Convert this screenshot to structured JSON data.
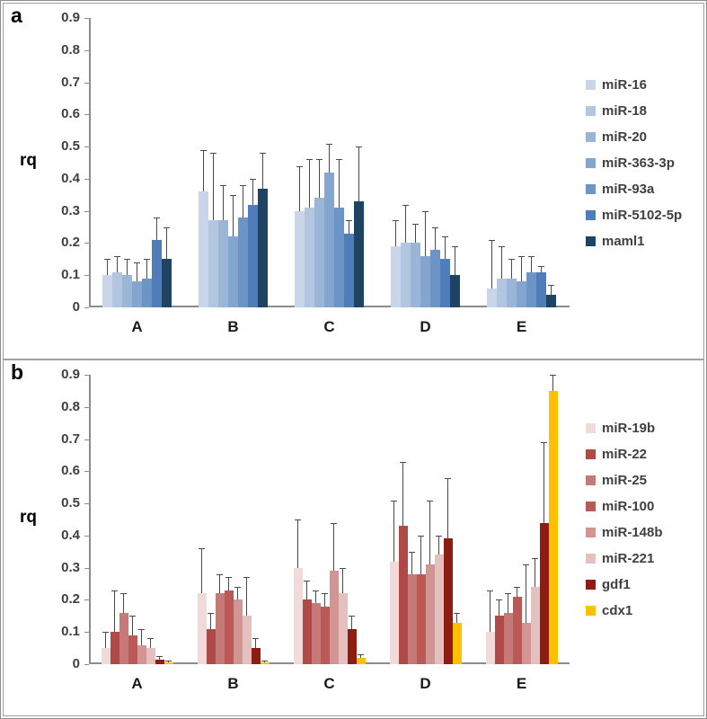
{
  "figure": {
    "panels": [
      "a",
      "b"
    ]
  },
  "chart_data": [
    {
      "type": "bar",
      "panel_label": "a",
      "title": "",
      "xlabel": "",
      "ylabel": "rq",
      "ylim": [
        0,
        0.9
      ],
      "yticks": [
        "0",
        "0.1",
        "0.2",
        "0.3",
        "0.4",
        "0.5",
        "0.6",
        "0.7",
        "0.8",
        "0.9"
      ],
      "grid": false,
      "legend_position": "right",
      "error_bars": true,
      "categories": [
        "A",
        "B",
        "C",
        "D",
        "E"
      ],
      "series": [
        {
          "name": "miR-16",
          "color": "#c9d6ea",
          "values": [
            0.1,
            0.36,
            0.3,
            0.19,
            0.06
          ],
          "error_top": [
            0.15,
            0.49,
            0.44,
            0.27,
            0.21
          ]
        },
        {
          "name": "miR-18",
          "color": "#b2c6e0",
          "values": [
            0.11,
            0.27,
            0.31,
            0.2,
            0.09
          ],
          "error_top": [
            0.16,
            0.48,
            0.46,
            0.32,
            0.19
          ]
        },
        {
          "name": "miR-20",
          "color": "#9bb5d7",
          "values": [
            0.1,
            0.27,
            0.34,
            0.2,
            0.09
          ],
          "error_top": [
            0.15,
            0.38,
            0.46,
            0.26,
            0.15
          ]
        },
        {
          "name": "miR-363-3p",
          "color": "#84a5cd",
          "values": [
            0.08,
            0.22,
            0.42,
            0.16,
            0.08
          ],
          "error_top": [
            0.14,
            0.35,
            0.51,
            0.3,
            0.16
          ]
        },
        {
          "name": "miR-93a",
          "color": "#6c94c4",
          "values": [
            0.09,
            0.28,
            0.31,
            0.18,
            0.11
          ],
          "error_top": [
            0.15,
            0.38,
            0.46,
            0.25,
            0.16
          ]
        },
        {
          "name": "miR-5102-5p",
          "color": "#4e7dba",
          "values": [
            0.21,
            0.32,
            0.23,
            0.15,
            0.11
          ],
          "error_top": [
            0.28,
            0.4,
            0.27,
            0.22,
            0.13
          ]
        },
        {
          "name": "maml1",
          "color": "#1f4363",
          "values": [
            0.15,
            0.37,
            0.33,
            0.1,
            0.04
          ],
          "error_top": [
            0.25,
            0.48,
            0.5,
            0.19,
            0.07
          ]
        }
      ]
    },
    {
      "type": "bar",
      "panel_label": "b",
      "title": "",
      "xlabel": "",
      "ylabel": "rq",
      "ylim": [
        0,
        0.9
      ],
      "yticks": [
        "0",
        "0.1",
        "0.2",
        "0.3",
        "0.4",
        "0.5",
        "0.6",
        "0.7",
        "0.8",
        "0.9"
      ],
      "grid": false,
      "legend_position": "right",
      "error_bars": true,
      "categories": [
        "A",
        "B",
        "C",
        "D",
        "E"
      ],
      "series": [
        {
          "name": "miR-19b",
          "color": "#f1dbda",
          "values": [
            0.05,
            0.22,
            0.3,
            0.32,
            0.1
          ],
          "error_top": [
            0.1,
            0.36,
            0.45,
            0.51,
            0.23
          ]
        },
        {
          "name": "miR-22",
          "color": "#b04a47",
          "values": [
            0.1,
            0.11,
            0.2,
            0.43,
            0.15
          ],
          "error_top": [
            0.23,
            0.16,
            0.26,
            0.63,
            0.2
          ]
        },
        {
          "name": "miR-25",
          "color": "#c67a77",
          "values": [
            0.16,
            0.22,
            0.19,
            0.28,
            0.16
          ],
          "error_top": [
            0.22,
            0.28,
            0.23,
            0.35,
            0.22
          ]
        },
        {
          "name": "miR-100",
          "color": "#ba5a57",
          "values": [
            0.09,
            0.23,
            0.18,
            0.28,
            0.21
          ],
          "error_top": [
            0.15,
            0.27,
            0.22,
            0.4,
            0.24
          ]
        },
        {
          "name": "miR-148b",
          "color": "#d19694",
          "values": [
            0.06,
            0.2,
            0.29,
            0.31,
            0.13
          ],
          "error_top": [
            0.11,
            0.24,
            0.44,
            0.51,
            0.31
          ]
        },
        {
          "name": "miR-221",
          "color": "#e4c0bf",
          "values": [
            0.05,
            0.15,
            0.22,
            0.34,
            0.24
          ],
          "error_top": [
            0.08,
            0.27,
            0.3,
            0.4,
            0.33
          ]
        },
        {
          "name": "gdf1",
          "color": "#8e1c13",
          "values": [
            0.015,
            0.05,
            0.11,
            0.39,
            0.44
          ],
          "error_top": [
            0.025,
            0.08,
            0.15,
            0.58,
            0.69
          ]
        },
        {
          "name": "cdx1",
          "color": "#ffc000",
          "values": [
            0.005,
            0.005,
            0.02,
            0.13,
            0.85
          ],
          "error_top": [
            0.01,
            0.01,
            0.03,
            0.16,
            0.9
          ]
        }
      ]
    }
  ]
}
